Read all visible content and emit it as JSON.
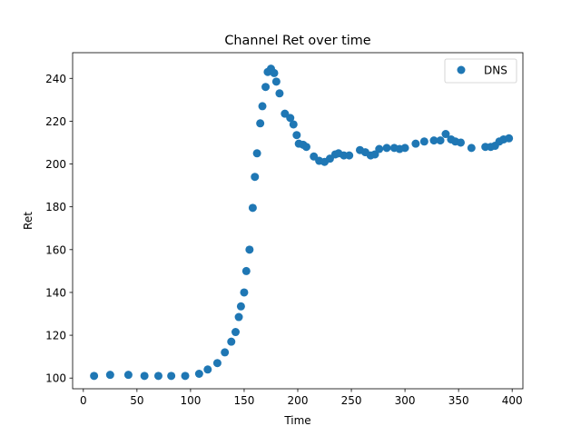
{
  "chart_data": {
    "type": "scatter",
    "title": "Channel Ret over time",
    "xlabel": "Time",
    "ylabel": "Ret",
    "xlim": [
      -10,
      410
    ],
    "ylim": [
      95,
      252
    ],
    "xticks": [
      0,
      50,
      100,
      150,
      200,
      250,
      300,
      350,
      400
    ],
    "yticks": [
      100,
      120,
      140,
      160,
      180,
      200,
      220,
      240
    ],
    "grid": false,
    "legend_position": "top-right",
    "colors": {
      "series": "#1f77b4"
    },
    "series": [
      {
        "name": "DNS",
        "x": [
          10,
          25,
          42,
          57,
          70,
          82,
          95,
          108,
          116,
          125,
          132,
          138,
          142,
          145,
          147,
          150,
          152,
          155,
          158,
          160,
          162,
          165,
          167,
          170,
          172,
          175,
          178,
          180,
          183,
          188,
          193,
          196,
          199,
          201,
          205,
          208,
          215,
          220,
          225,
          230,
          235,
          238,
          243,
          248,
          258,
          263,
          268,
          272,
          276,
          283,
          290,
          295,
          300,
          310,
          318,
          327,
          333,
          338,
          343,
          347,
          352,
          362,
          375,
          380,
          384,
          388,
          392,
          397
        ],
        "y": [
          101,
          101.5,
          101.5,
          101,
          101,
          101,
          101,
          102,
          104,
          107,
          112,
          117,
          121.5,
          128.5,
          133.5,
          140,
          150,
          160,
          179.5,
          194,
          205,
          219,
          227,
          236,
          243,
          244.5,
          242.5,
          238.5,
          233,
          223.5,
          221.5,
          218.5,
          213.5,
          209.5,
          209,
          208,
          203.5,
          201.5,
          201,
          202.5,
          204.5,
          205,
          204,
          204,
          206.5,
          205.5,
          204,
          204.5,
          207,
          207.5,
          207.5,
          207,
          207.5,
          209.5,
          210.5,
          211,
          211,
          214,
          211.5,
          210.5,
          210,
          207.5,
          208,
          208,
          208.5,
          210.5,
          211.5,
          212
        ]
      }
    ]
  }
}
